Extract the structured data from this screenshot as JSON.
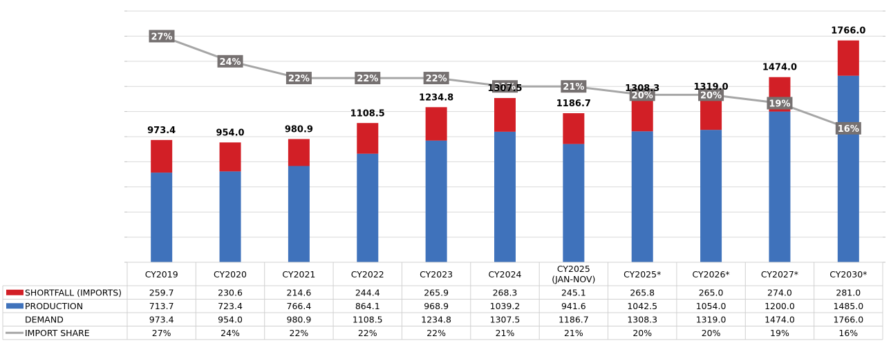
{
  "chart_data": {
    "type": "bar",
    "stacked": true,
    "categories": [
      "CY2019",
      "CY2020",
      "CY2021",
      "CY2022",
      "CY2023",
      "CY2024",
      "CY2025\n(JAN-NOV)",
      "CY2025*",
      "CY2026*",
      "CY2027*",
      "CY2030*"
    ],
    "series": [
      {
        "name": "SHORTFALL (IMPORTS)",
        "kind": "bar",
        "color": "#d21f26",
        "values": [
          259.7,
          230.6,
          214.6,
          244.4,
          265.9,
          268.3,
          245.1,
          265.8,
          265.0,
          274.0,
          281.0
        ],
        "labels": [
          "259.7",
          "230.6",
          "214.6",
          "244.4",
          "265.9",
          "268.3",
          "245.1",
          "265.8",
          "265.0",
          "274.0",
          "281.0"
        ]
      },
      {
        "name": "PRODUCTION",
        "kind": "bar",
        "color": "#3f72bb",
        "values": [
          713.7,
          723.4,
          766.4,
          864.1,
          968.9,
          1039.2,
          941.6,
          1042.5,
          1054.0,
          1200.0,
          1485.0
        ],
        "labels": [
          "713.7",
          "723.4",
          "766.4",
          "864.1",
          "968.9",
          "1039.2",
          "941.6",
          "1042.5",
          "1054.0",
          "1200.0",
          "1485.0"
        ]
      },
      {
        "name": "DEMAND",
        "kind": "total",
        "values": [
          973.4,
          954.0,
          980.9,
          1108.5,
          1234.8,
          1307.5,
          1186.7,
          1308.3,
          1319.0,
          1474.0,
          1766.0
        ],
        "labels": [
          "973.4",
          "954.0",
          "980.9",
          "1108.5",
          "1234.8",
          "1307.5",
          "1186.7",
          "1308.3",
          "1319.0",
          "1474.0",
          "1766.0"
        ],
        "bar_labels": [
          "973.4",
          "954.0",
          "980.9",
          "1108.5",
          "1234.8",
          "1307.5",
          "1186.7",
          "1308.3",
          "1319.0",
          "1474.0",
          "1766.0"
        ]
      },
      {
        "name": "IMPORT SHARE",
        "kind": "line",
        "color": "#a6a6a6",
        "axis": "secondary",
        "values": [
          27,
          24,
          22,
          22,
          22,
          21,
          21,
          20,
          20,
          19,
          16
        ],
        "labels": [
          "27%",
          "24%",
          "22%",
          "22%",
          "22%",
          "21%",
          "21%",
          "20%",
          "20%",
          "19%",
          "16%"
        ]
      }
    ],
    "ylim": [
      0,
      2000
    ],
    "y2lim": [
      0,
      30
    ],
    "grid": true,
    "xlabel": "",
    "ylabel": "",
    "legend": "data-table-left"
  }
}
